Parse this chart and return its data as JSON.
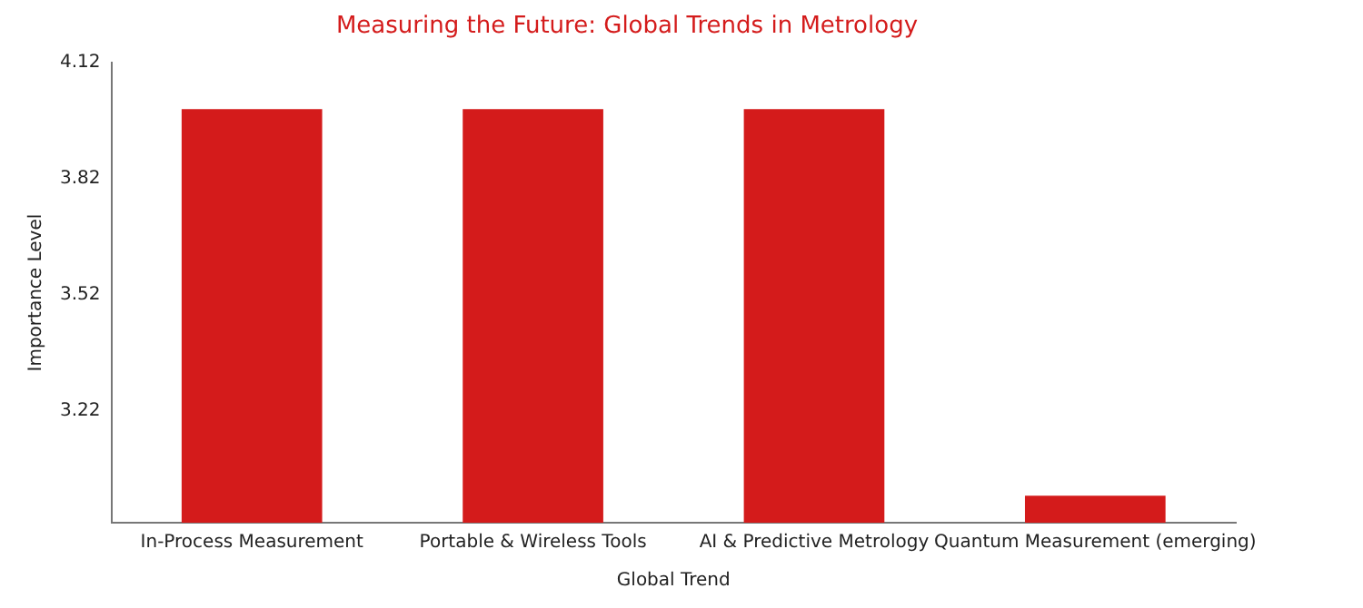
{
  "chart_data": {
    "type": "bar",
    "title": "Measuring the Future: Global Trends in Metrology",
    "xlabel": "Global Trend",
    "ylabel": "Importance Level",
    "categories": [
      "In-Process Measurement",
      "Portable & Wireless Tools",
      "AI & Predictive Metrology",
      "Quantum Measurement (emerging)"
    ],
    "values": [
      4,
      4,
      4,
      3
    ],
    "color": "#d41b1b",
    "ylim": [
      2.93,
      4.12
    ],
    "yticks": [
      3.22,
      3.52,
      3.82,
      4.12
    ],
    "grid": false,
    "legend": false
  }
}
